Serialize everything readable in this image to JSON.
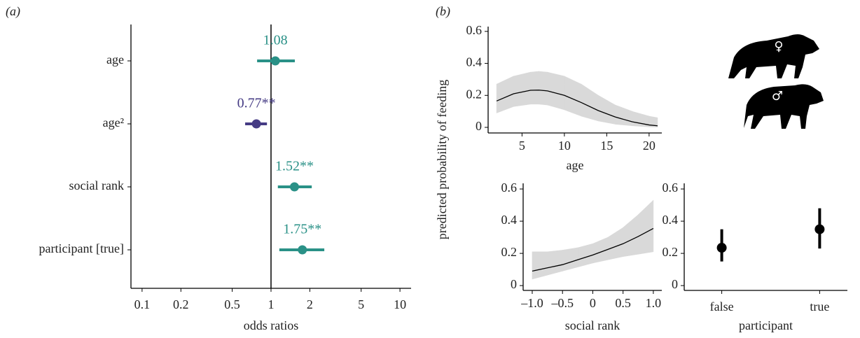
{
  "chart_data": [
    {
      "type": "forest",
      "label": "(a)",
      "xlabel": "odds ratios",
      "categories": [
        "age",
        "age²",
        "social rank",
        "participant [true]"
      ],
      "values": [
        1.08,
        0.77,
        1.52,
        1.75
      ],
      "value_labels": [
        "1.08",
        "0.77**",
        "1.52**",
        "1.75**"
      ],
      "lower": [
        0.78,
        0.63,
        1.13,
        1.16
      ],
      "upper": [
        1.53,
        0.93,
        2.07,
        2.59
      ],
      "colors": [
        "#2a9187",
        "#453b84",
        "#2a9187",
        "#2a9187"
      ],
      "log_x": true,
      "xlim": [
        0.082,
        12.2
      ],
      "xticks": [
        0.1,
        0.2,
        0.5,
        1,
        2,
        5,
        10
      ],
      "reference_line": 1
    },
    {
      "type": "line",
      "label": "(b)",
      "xlabel": "age",
      "ylabel": "predicted probability of feeding",
      "annotations": [
        "♀",
        "♂"
      ],
      "x": [
        2,
        4,
        6,
        7,
        8,
        10,
        12,
        14,
        16,
        18,
        20,
        21
      ],
      "values": [
        0.165,
        0.21,
        0.232,
        0.233,
        0.228,
        0.2,
        0.155,
        0.105,
        0.065,
        0.035,
        0.015,
        0.01
      ],
      "lower": [
        0.09,
        0.13,
        0.145,
        0.145,
        0.14,
        0.11,
        0.07,
        0.04,
        0.02,
        0.01,
        0.003,
        0.002
      ],
      "upper": [
        0.27,
        0.32,
        0.345,
        0.35,
        0.345,
        0.32,
        0.27,
        0.2,
        0.14,
        0.1,
        0.07,
        0.06
      ],
      "color": "#000000",
      "band_color": "#d9d9d9",
      "xlim": [
        1,
        21.5
      ],
      "xticks": [
        5,
        10,
        15,
        20
      ],
      "ylim": [
        -0.035,
        0.63
      ],
      "yticks": [
        0,
        0.2,
        0.4,
        0.6
      ]
    },
    {
      "type": "line",
      "xlabel": "social rank",
      "x": [
        -1,
        -0.75,
        -0.5,
        -0.25,
        0,
        0.25,
        0.5,
        0.75,
        1
      ],
      "values": [
        0.09,
        0.11,
        0.13,
        0.16,
        0.19,
        0.225,
        0.26,
        0.305,
        0.355
      ],
      "lower": [
        0.04,
        0.065,
        0.09,
        0.115,
        0.14,
        0.16,
        0.18,
        0.195,
        0.21
      ],
      "upper": [
        0.21,
        0.21,
        0.22,
        0.235,
        0.26,
        0.3,
        0.36,
        0.44,
        0.53
      ],
      "color": "#000000",
      "band_color": "#d9d9d9",
      "xlim": [
        -1.15,
        1.14
      ],
      "xticks": [
        {
          "value": -1,
          "label": "–1.0"
        },
        {
          "value": -0.5,
          "label": "–0.5"
        },
        0,
        0.5,
        {
          "value": 1,
          "label": "1.0"
        }
      ],
      "ylim": [
        -0.03,
        0.635
      ],
      "yticks": [
        0,
        0.2,
        0.4,
        0.6
      ]
    },
    {
      "type": "pointrange",
      "xlabel": "participant",
      "categories": [
        "false",
        "true"
      ],
      "values": [
        0.235,
        0.35
      ],
      "lower": [
        0.15,
        0.23
      ],
      "upper": [
        0.35,
        0.48
      ],
      "color": "#000000",
      "ylim": [
        -0.03,
        0.635
      ],
      "yticks": [
        0,
        0.2,
        0.4,
        0.6
      ]
    }
  ]
}
